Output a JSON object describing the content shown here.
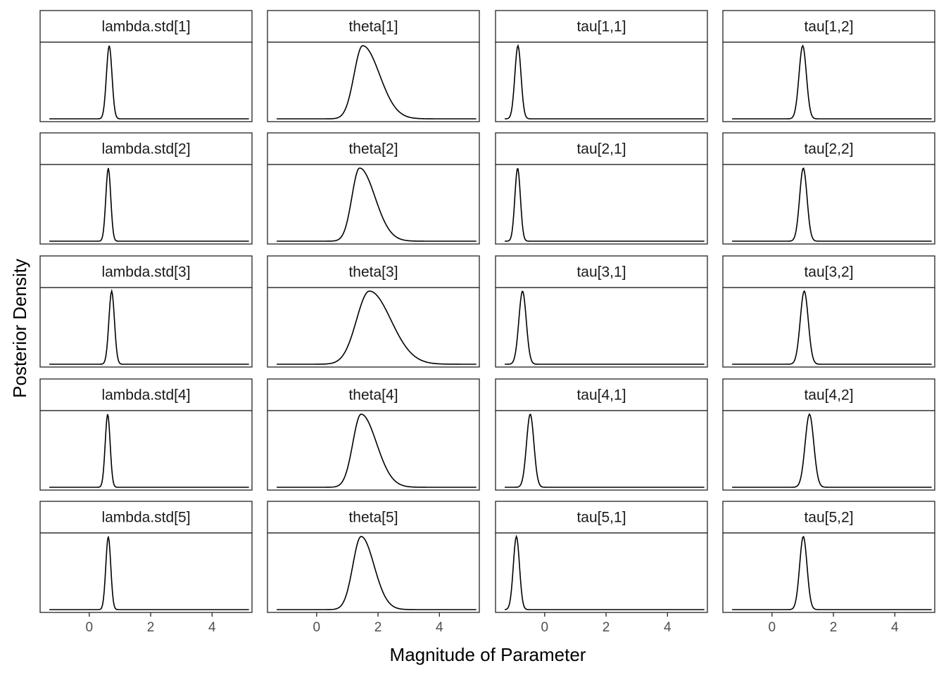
{
  "chart_data": {
    "type": "line",
    "facet_layout": {
      "rows": 5,
      "cols": 4
    },
    "xlabel": "Magnitude of Parameter",
    "ylabel": "Posterior Density",
    "xlim": [
      -1.6,
      5.3
    ],
    "x_ticks": [
      0,
      2,
      4
    ],
    "line_color": "#000000",
    "panel_border_color": "#333333",
    "strip_fill": "#ffffff",
    "panels": [
      {
        "label": "lambda.std[1]",
        "mode": 0.65,
        "sd_left": 0.09,
        "sd_right": 0.09
      },
      {
        "label": "theta[1]",
        "mode": 1.5,
        "sd_left": 0.28,
        "sd_right": 0.55
      },
      {
        "label": "tau[1,1]",
        "mode": -0.87,
        "sd_left": 0.1,
        "sd_right": 0.1
      },
      {
        "label": "tau[1,2]",
        "mode": 1.0,
        "sd_left": 0.12,
        "sd_right": 0.12
      },
      {
        "label": "lambda.std[2]",
        "mode": 0.62,
        "sd_left": 0.08,
        "sd_right": 0.08
      },
      {
        "label": "theta[2]",
        "mode": 1.4,
        "sd_left": 0.25,
        "sd_right": 0.5
      },
      {
        "label": "tau[2,1]",
        "mode": -0.88,
        "sd_left": 0.09,
        "sd_right": 0.09
      },
      {
        "label": "tau[2,2]",
        "mode": 1.02,
        "sd_left": 0.12,
        "sd_right": 0.12
      },
      {
        "label": "lambda.std[3]",
        "mode": 0.73,
        "sd_left": 0.09,
        "sd_right": 0.09
      },
      {
        "label": "theta[3]",
        "mode": 1.72,
        "sd_left": 0.42,
        "sd_right": 0.7
      },
      {
        "label": "tau[3,1]",
        "mode": -0.72,
        "sd_left": 0.12,
        "sd_right": 0.12
      },
      {
        "label": "tau[3,2]",
        "mode": 1.05,
        "sd_left": 0.13,
        "sd_right": 0.13
      },
      {
        "label": "lambda.std[4]",
        "mode": 0.6,
        "sd_left": 0.08,
        "sd_right": 0.08
      },
      {
        "label": "theta[4]",
        "mode": 1.45,
        "sd_left": 0.27,
        "sd_right": 0.5
      },
      {
        "label": "tau[4,1]",
        "mode": -0.47,
        "sd_left": 0.12,
        "sd_right": 0.12
      },
      {
        "label": "tau[4,2]",
        "mode": 1.22,
        "sd_left": 0.14,
        "sd_right": 0.14
      },
      {
        "label": "lambda.std[5]",
        "mode": 0.62,
        "sd_left": 0.08,
        "sd_right": 0.08
      },
      {
        "label": "theta[5]",
        "mode": 1.45,
        "sd_left": 0.27,
        "sd_right": 0.42
      },
      {
        "label": "tau[5,1]",
        "mode": -0.92,
        "sd_left": 0.1,
        "sd_right": 0.1
      },
      {
        "label": "tau[5,2]",
        "mode": 1.02,
        "sd_left": 0.12,
        "sd_right": 0.12
      }
    ]
  }
}
